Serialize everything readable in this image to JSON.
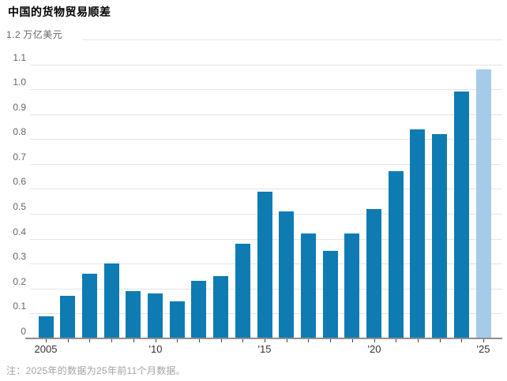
{
  "title": "中国的货物贸易顺差",
  "footnote": "注：2025年的数据为25年前11个月数据。",
  "colors": {
    "title": "#000000",
    "bar": "#0e7cb2",
    "bar_highlight": "#a5cbe8",
    "gridline": "#e4e4e4",
    "baseline": "#8f8f8f",
    "tick": "#444444",
    "y_label": "#666666",
    "x_label": "#333333",
    "footnote": "#a3a3a3"
  },
  "chart_data": {
    "type": "bar",
    "title": "中国的货物贸易顺差",
    "ylabel_top": {
      "value": "1.2",
      "unit": "万亿美元"
    },
    "categories": [
      "2005",
      "2006",
      "2007",
      "2008",
      "2009",
      "2010",
      "2011",
      "2012",
      "2013",
      "2014",
      "2015",
      "2016",
      "2017",
      "2018",
      "2019",
      "2020",
      "2021",
      "2022",
      "2023",
      "2024",
      "2025"
    ],
    "values": [
      0.09,
      0.17,
      0.26,
      0.3,
      0.19,
      0.18,
      0.15,
      0.23,
      0.25,
      0.38,
      0.59,
      0.51,
      0.42,
      0.35,
      0.42,
      0.52,
      0.67,
      0.84,
      0.82,
      0.99,
      1.08
    ],
    "highlight_index": 20,
    "ylim": [
      0,
      1.2
    ],
    "y_tick_step": 0.1,
    "y_tick_labels": [
      "0",
      "0.1",
      "0.2",
      "0.3",
      "0.4",
      "0.5",
      "0.6",
      "0.7",
      "0.8",
      "0.9",
      "1.0",
      "1.1"
    ],
    "x_tick_labels": [
      {
        "index": 0,
        "label": "2005"
      },
      {
        "index": 5,
        "label": "'10"
      },
      {
        "index": 10,
        "label": "'15"
      },
      {
        "index": 15,
        "label": "'20"
      },
      {
        "index": 20,
        "label": "'25"
      }
    ],
    "grid": true,
    "legend": "none",
    "note": "注：2025年的数据为25年前11个月数据。"
  }
}
